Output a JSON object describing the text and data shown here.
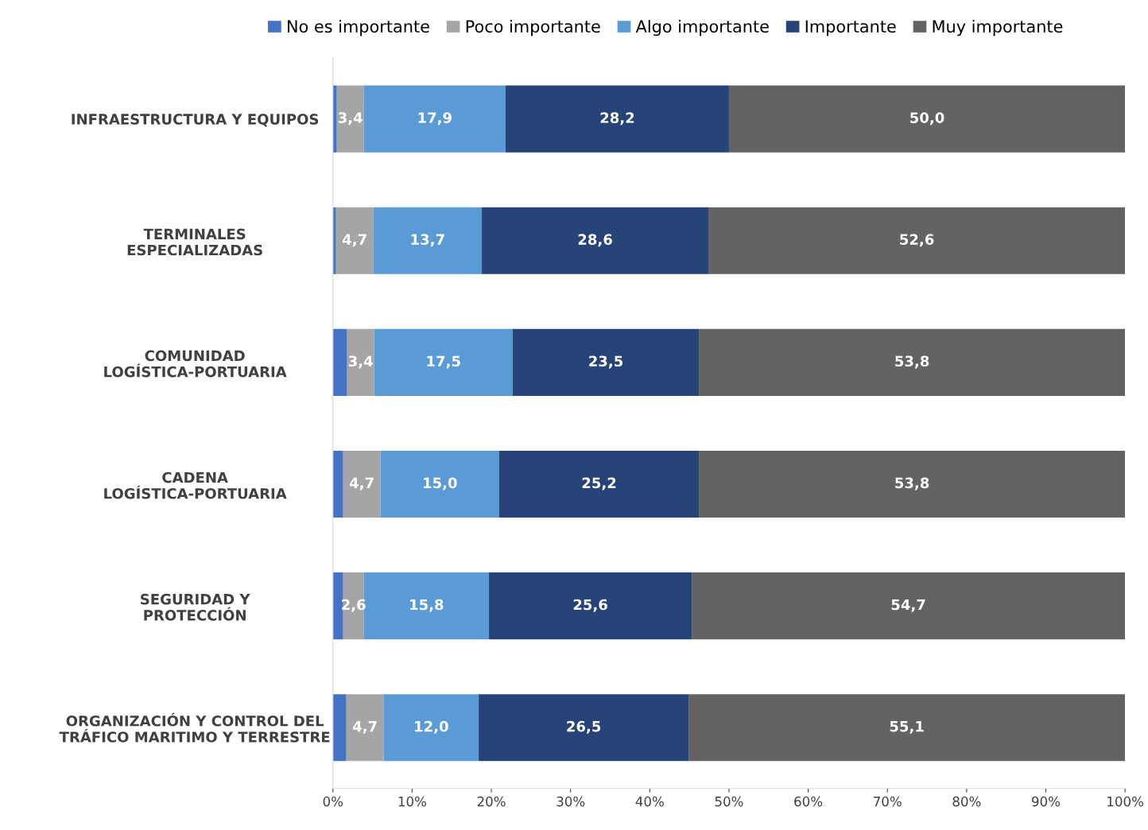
{
  "chart_data": {
    "type": "bar",
    "orientation": "horizontal",
    "stacked": true,
    "categories": [
      "INFRAESTRUCTURA Y EQUIPOS",
      "TERMINALES\nESPECIALIZADAS",
      "COMUNIDAD\nLOGÍSTICA-PORTUARIA",
      "CADENA\nLOGÍSTICA-PORTUARIA",
      "SEGURIDAD Y\nPROTECCIÓN",
      "ORGANIZACIÓN Y CONTROL DEL\nTRÁFICO MARITIMO Y TERRESTRE"
    ],
    "series": [
      {
        "name": "No es importante",
        "color": "#4472c4",
        "values": [
          0.5,
          0.4,
          1.8,
          1.3,
          1.3,
          1.7
        ],
        "value_labels": [
          null,
          null,
          null,
          null,
          null,
          null
        ]
      },
      {
        "name": "Poco importante",
        "color": "#a5a5a5",
        "values": [
          3.4,
          4.7,
          3.4,
          4.7,
          2.6,
          4.7
        ],
        "value_labels": [
          "3,4",
          "4,7",
          "3,4",
          "4,7",
          "2,6",
          "4,7"
        ]
      },
      {
        "name": "Algo importante",
        "color": "#5b9bd5",
        "values": [
          17.9,
          13.7,
          17.5,
          15.0,
          15.8,
          12.0
        ],
        "value_labels": [
          "17,9",
          "13,7",
          "17,5",
          "15,0",
          "15,8",
          "12,0"
        ]
      },
      {
        "name": "Importante",
        "color": "#264478",
        "values": [
          28.2,
          28.6,
          23.5,
          25.2,
          25.6,
          26.5
        ],
        "value_labels": [
          "28,2",
          "28,6",
          "23,5",
          "25,2",
          "25,6",
          "26,5"
        ]
      },
      {
        "name": "Muy importante",
        "color": "#636363",
        "values": [
          50.0,
          52.6,
          53.8,
          53.8,
          54.7,
          55.1
        ],
        "value_labels": [
          "50,0",
          "52,6",
          "53,8",
          "53,8",
          "54,7",
          "55,1"
        ]
      }
    ],
    "xlim": [
      0,
      100
    ],
    "xticks": [
      {
        "value": 0,
        "label": "0%"
      },
      {
        "value": 10,
        "label": "10%"
      },
      {
        "value": 20,
        "label": "20%"
      },
      {
        "value": 30,
        "label": "30%"
      },
      {
        "value": 40,
        "label": "40%"
      },
      {
        "value": 50,
        "label": "50%"
      },
      {
        "value": 60,
        "label": "60%"
      },
      {
        "value": 70,
        "label": "70%"
      },
      {
        "value": 80,
        "label": "80%"
      },
      {
        "value": 90,
        "label": "90%"
      },
      {
        "value": 100,
        "label": "100%"
      }
    ],
    "legend": "top",
    "grid": false
  }
}
